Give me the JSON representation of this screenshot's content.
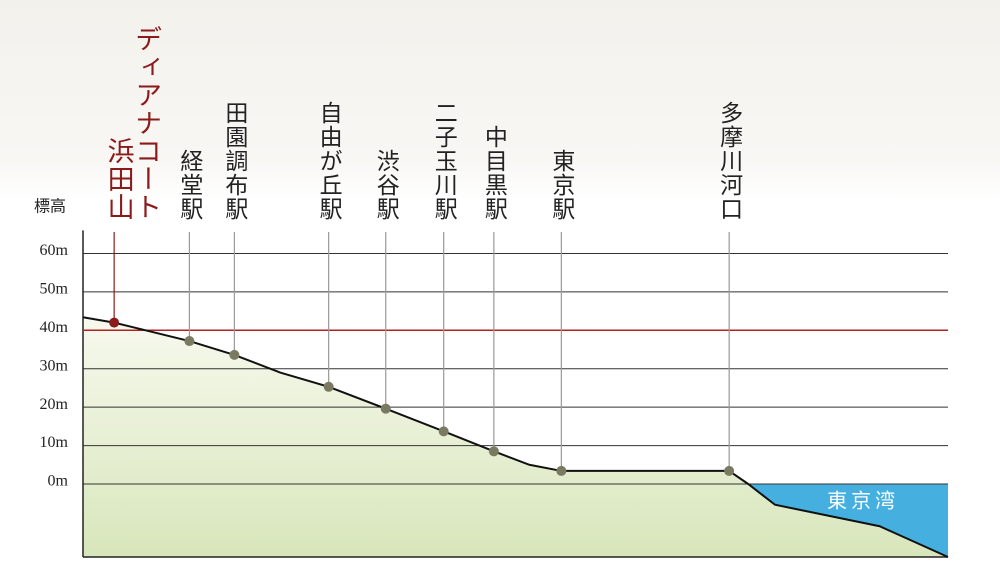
{
  "chart_data": {
    "type": "line",
    "y_axis_label": "標高",
    "ylim": [
      -19,
      66
    ],
    "yticks": [
      {
        "value": 0,
        "label": "0m"
      },
      {
        "value": 10,
        "label": "10m"
      },
      {
        "value": 20,
        "label": "20m"
      },
      {
        "value": 30,
        "label": "30m"
      },
      {
        "value": 40,
        "label": "40m"
      },
      {
        "value": 50,
        "label": "50m"
      },
      {
        "value": 60,
        "label": "60m"
      }
    ],
    "xlim": [
      0,
      100
    ],
    "grid": true,
    "reference_line": {
      "value": 40,
      "color": "#b22222"
    },
    "highlight_caption": "ディアナコート",
    "highlight_color": "#8b1a1a",
    "stations": {
      "names": [
        "浜田山",
        "経堂駅",
        "田園調布駅",
        "自由が丘駅",
        "渋谷駅",
        "二子玉川駅",
        "中目黒駅",
        "東京駅",
        "多摩川河口"
      ],
      "x": [
        3.6,
        12.3,
        17.5,
        28.4,
        35.0,
        41.7,
        47.5,
        55.3,
        74.7
      ],
      "values": [
        42,
        37.2,
        33.6,
        25.3,
        19.6,
        13.7,
        8.5,
        3.4,
        3.4
      ],
      "color": "#7a7a62"
    },
    "profile": {
      "x": [
        0,
        3.6,
        12.3,
        17.5,
        22.8,
        28.4,
        35.0,
        41.7,
        47.5,
        51.6,
        55.3,
        74.7,
        76.9,
        80.0,
        92.1,
        100
      ],
      "y": [
        43.4,
        42,
        37.2,
        33.6,
        29,
        25.3,
        19.6,
        13.7,
        8.5,
        5,
        3.4,
        3.4,
        0,
        -5.4,
        -11,
        -19
      ]
    },
    "sea": {
      "label": "東京湾",
      "level": 0,
      "from_x": 76.9,
      "color": "#45b0e0"
    }
  }
}
